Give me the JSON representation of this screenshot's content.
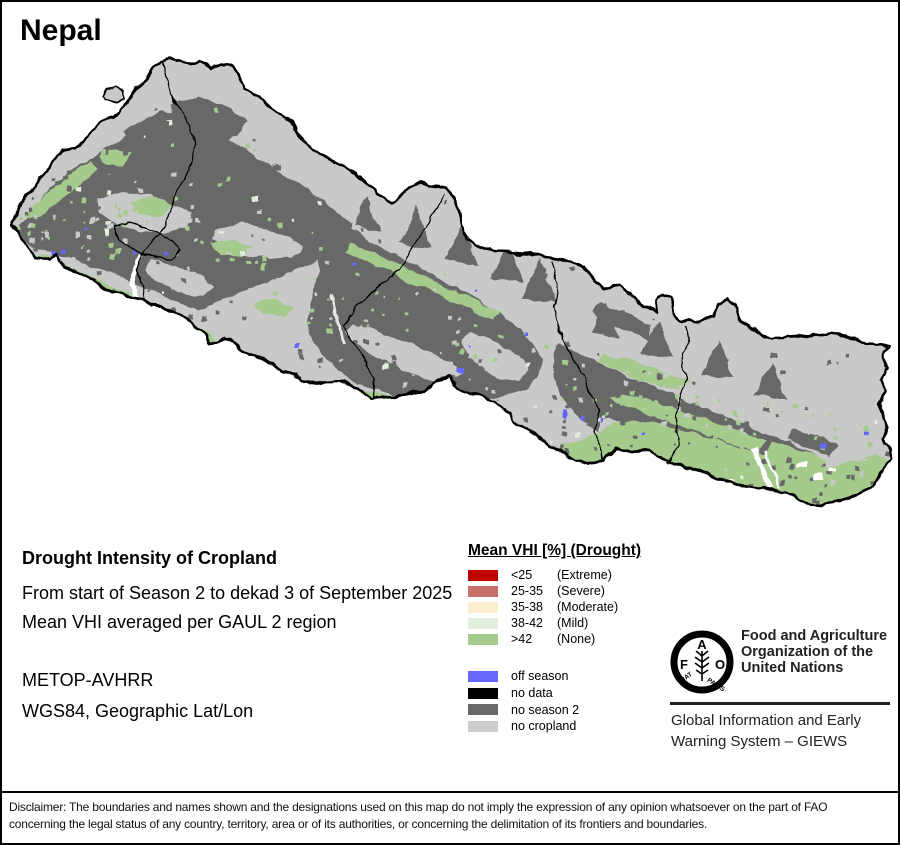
{
  "title": "Nepal",
  "info": {
    "heading": "Drought Intensity of Cropland",
    "period_line": "From start of Season 2 to dekad 3 of September 2025",
    "aggregation_line": "Mean VHI averaged per GAUL 2 region",
    "sensor": "METOP-AVHRR",
    "projection": "WGS84, Geographic Lat/Lon"
  },
  "legend": {
    "title": "Mean VHI [%] (Drought)",
    "drought_classes": [
      {
        "range": "<25",
        "label": "(Extreme)",
        "color": "#c00000"
      },
      {
        "range": "25-35",
        "label": "(Severe)",
        "color": "#c8706c"
      },
      {
        "range": "35-38",
        "label": "(Moderate)",
        "color": "#fdeecd"
      },
      {
        "range": "38-42",
        "label": "(Mild)",
        "color": "#e2efdd"
      },
      {
        "range": ">42",
        "label": "(None)",
        "color": "#a4ca8c"
      }
    ],
    "other_classes": [
      {
        "label": "off season",
        "color": "#6667fa"
      },
      {
        "label": "no data",
        "color": "#000000"
      },
      {
        "label": "no season 2",
        "color": "#686868"
      },
      {
        "label": "no cropland",
        "color": "#cccccc"
      }
    ]
  },
  "footer": {
    "fao_lines": [
      "Food and Agriculture",
      "Organization of the",
      "United Nations"
    ],
    "giews_lines": [
      "Global Information and Early",
      "Warning System – GIEWS"
    ],
    "logo": {
      "letters": [
        "F",
        "A",
        "O"
      ],
      "motto_left": "FIAT",
      "motto_right": "PANIS"
    }
  },
  "disclaimer": "Disclaimer: The boundaries and names shown and the designations used on this map do not imply the expression of any opinion whatsoever on the part of FAO concerning the legal status of any country, territory, area or of its authorities, or concerning the delimitation of its frontiers and boundaries."
}
